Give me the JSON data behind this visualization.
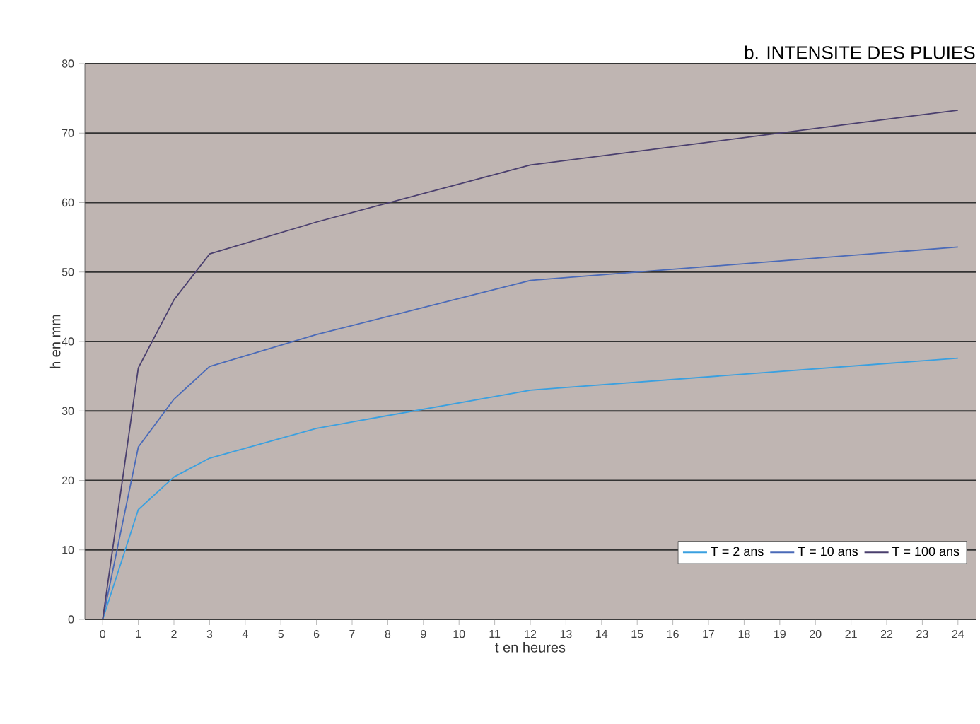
{
  "chart_data": {
    "type": "line",
    "title": "b. INTENSITE DES PLUIES",
    "xlabel": "t en heures",
    "ylabel": "h en mm",
    "xlim": [
      -0.5,
      24.5
    ],
    "xticks": [
      0,
      1,
      2,
      3,
      4,
      5,
      6,
      7,
      8,
      9,
      10,
      11,
      12,
      13,
      14,
      15,
      16,
      17,
      18,
      19,
      20,
      21,
      22,
      23,
      24
    ],
    "ylim": [
      0,
      80
    ],
    "yticks": [
      0,
      10,
      20,
      30,
      40,
      50,
      60,
      70,
      80
    ],
    "grid": "y",
    "legend": "bottom right",
    "marker": "none",
    "line_style": "solid",
    "series": [
      {
        "name": "T = 2 ans",
        "color": "#3aa0e0",
        "x": [
          0,
          1,
          2,
          3,
          6,
          12,
          24
        ],
        "values": [
          0,
          15.8,
          20.5,
          23.2,
          27.5,
          33,
          37.6
        ]
      },
      {
        "name": "T = 10 ans",
        "color": "#4a6ab8",
        "x": [
          0,
          1,
          2,
          3,
          6,
          12,
          24
        ],
        "values": [
          0,
          24.8,
          31.7,
          36.4,
          41,
          48.8,
          53.6
        ]
      },
      {
        "name": "T = 100 ans",
        "color": "#4a3f6e",
        "x": [
          0,
          1,
          2,
          3,
          6,
          12,
          24
        ],
        "values": [
          0,
          36.2,
          46,
          52.6,
          57.2,
          65.4,
          73.3
        ]
      }
    ]
  }
}
